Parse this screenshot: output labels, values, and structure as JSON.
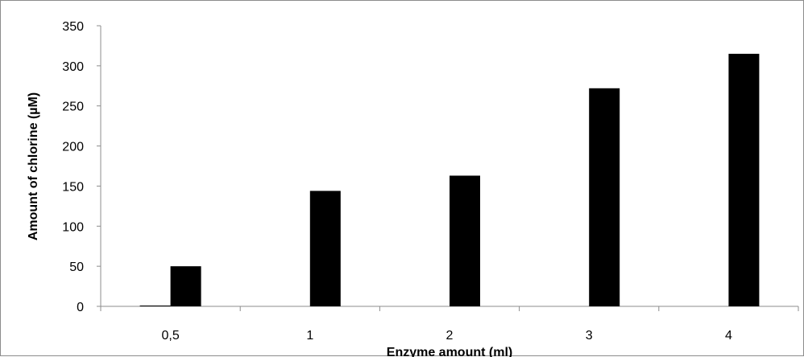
{
  "chart_data": {
    "type": "bar",
    "title": "",
    "xlabel": "Enzyme amount (ml)",
    "ylabel": "Amount of chlorine (µM)",
    "categories": [
      "0,5",
      "1",
      "2",
      "3",
      "4"
    ],
    "series": [
      {
        "values": [
          1,
          0,
          0,
          0,
          0
        ]
      },
      {
        "values": [
          50,
          144,
          163,
          272,
          315
        ]
      }
    ],
    "ylim": [
      0,
      350
    ],
    "yticks": [
      0,
      50,
      100,
      150,
      200,
      250,
      300,
      350
    ],
    "grid": false,
    "legend": "none",
    "colors": {
      "bar": "#000000",
      "axis": "#8c8c8c",
      "frame": "#8c8c8c"
    }
  }
}
